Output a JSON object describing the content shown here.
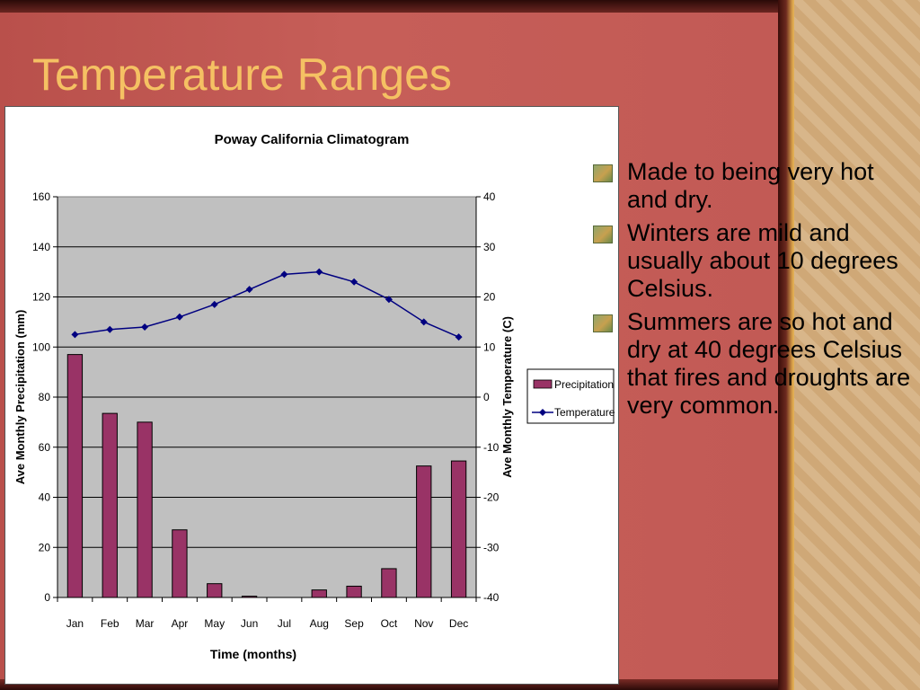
{
  "slide": {
    "title": "Temperature Ranges",
    "bullets": [
      "Made to being very hot and dry.",
      "Winters are mild and usually about 10 degrees Celsius.",
      "Summers are so hot and dry at 40 degrees Celsius that fires and droughts are very common."
    ]
  },
  "colors": {
    "background": "#c25a55",
    "title": "#f5c163",
    "bar": "#993366",
    "line": "#000080",
    "plot_area": "#c0c0c0"
  },
  "chart_data": {
    "type": "bar",
    "title": "Poway California Climatogram",
    "xlabel": "Time (months)",
    "ylabel": "Ave Monthly Precipitation (mm)",
    "y2label": "Ave Monthly Temperature (C)",
    "categories": [
      "Jan",
      "Feb",
      "Mar",
      "Apr",
      "May",
      "Jun",
      "Jul",
      "Aug",
      "Sep",
      "Oct",
      "Nov",
      "Dec"
    ],
    "ylim": [
      0,
      160
    ],
    "y2lim": [
      -40,
      40
    ],
    "yticks": [
      0,
      20,
      40,
      60,
      80,
      100,
      120,
      140,
      160
    ],
    "y2ticks": [
      -40,
      -30,
      -20,
      -10,
      0,
      10,
      20,
      30,
      40
    ],
    "grid": true,
    "legend": "right",
    "series": [
      {
        "name": "Precipitation",
        "type": "bar",
        "axis": "left",
        "values": [
          97,
          73.5,
          70,
          27,
          5.5,
          0.5,
          0,
          3,
          4.5,
          11.5,
          52.5,
          54.5
        ]
      },
      {
        "name": "Temperature",
        "type": "line",
        "axis": "right",
        "values": [
          12.5,
          13.5,
          14,
          16,
          18.5,
          21.5,
          24.5,
          25,
          23,
          19.5,
          15,
          12
        ]
      }
    ]
  }
}
